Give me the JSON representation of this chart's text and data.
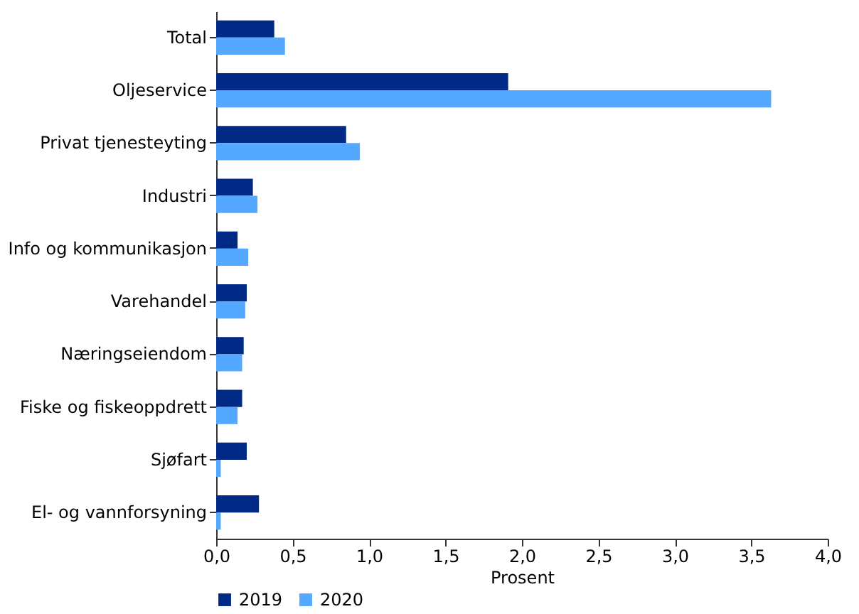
{
  "chart_data": {
    "type": "bar",
    "orientation": "horizontal",
    "xlabel": "Prosent",
    "categories": [
      "Total",
      "Oljeservice",
      "Privat tjenesteyting",
      "Industri",
      "Info og kommunikasjon",
      "Varehandel",
      "Næringseiendom",
      "Fiske og fiskeoppdrett",
      "Sjøfart",
      "El- og vannforsyning"
    ],
    "series": [
      {
        "name": "2019",
        "color": "#002a85",
        "values": [
          0.38,
          1.91,
          0.85,
          0.24,
          0.14,
          0.2,
          0.18,
          0.17,
          0.2,
          0.28
        ]
      },
      {
        "name": "2020",
        "color": "#55a8ff",
        "values": [
          0.45,
          3.63,
          0.94,
          0.27,
          0.21,
          0.19,
          0.17,
          0.14,
          0.03,
          0.03
        ]
      }
    ],
    "xlim": [
      0,
      4
    ],
    "xticks": [
      {
        "value": 0,
        "label": "0,0"
      },
      {
        "value": 0.5,
        "label": "0,5"
      },
      {
        "value": 1,
        "label": "1,0"
      },
      {
        "value": 1.5,
        "label": "1,5"
      },
      {
        "value": 2,
        "label": "2,0"
      },
      {
        "value": 2.5,
        "label": "2,5"
      },
      {
        "value": 3,
        "label": "3,0"
      },
      {
        "value": 3.5,
        "label": "3,5"
      },
      {
        "value": 4,
        "label": "4,0"
      }
    ],
    "grid": false,
    "legend": "bottom left"
  }
}
